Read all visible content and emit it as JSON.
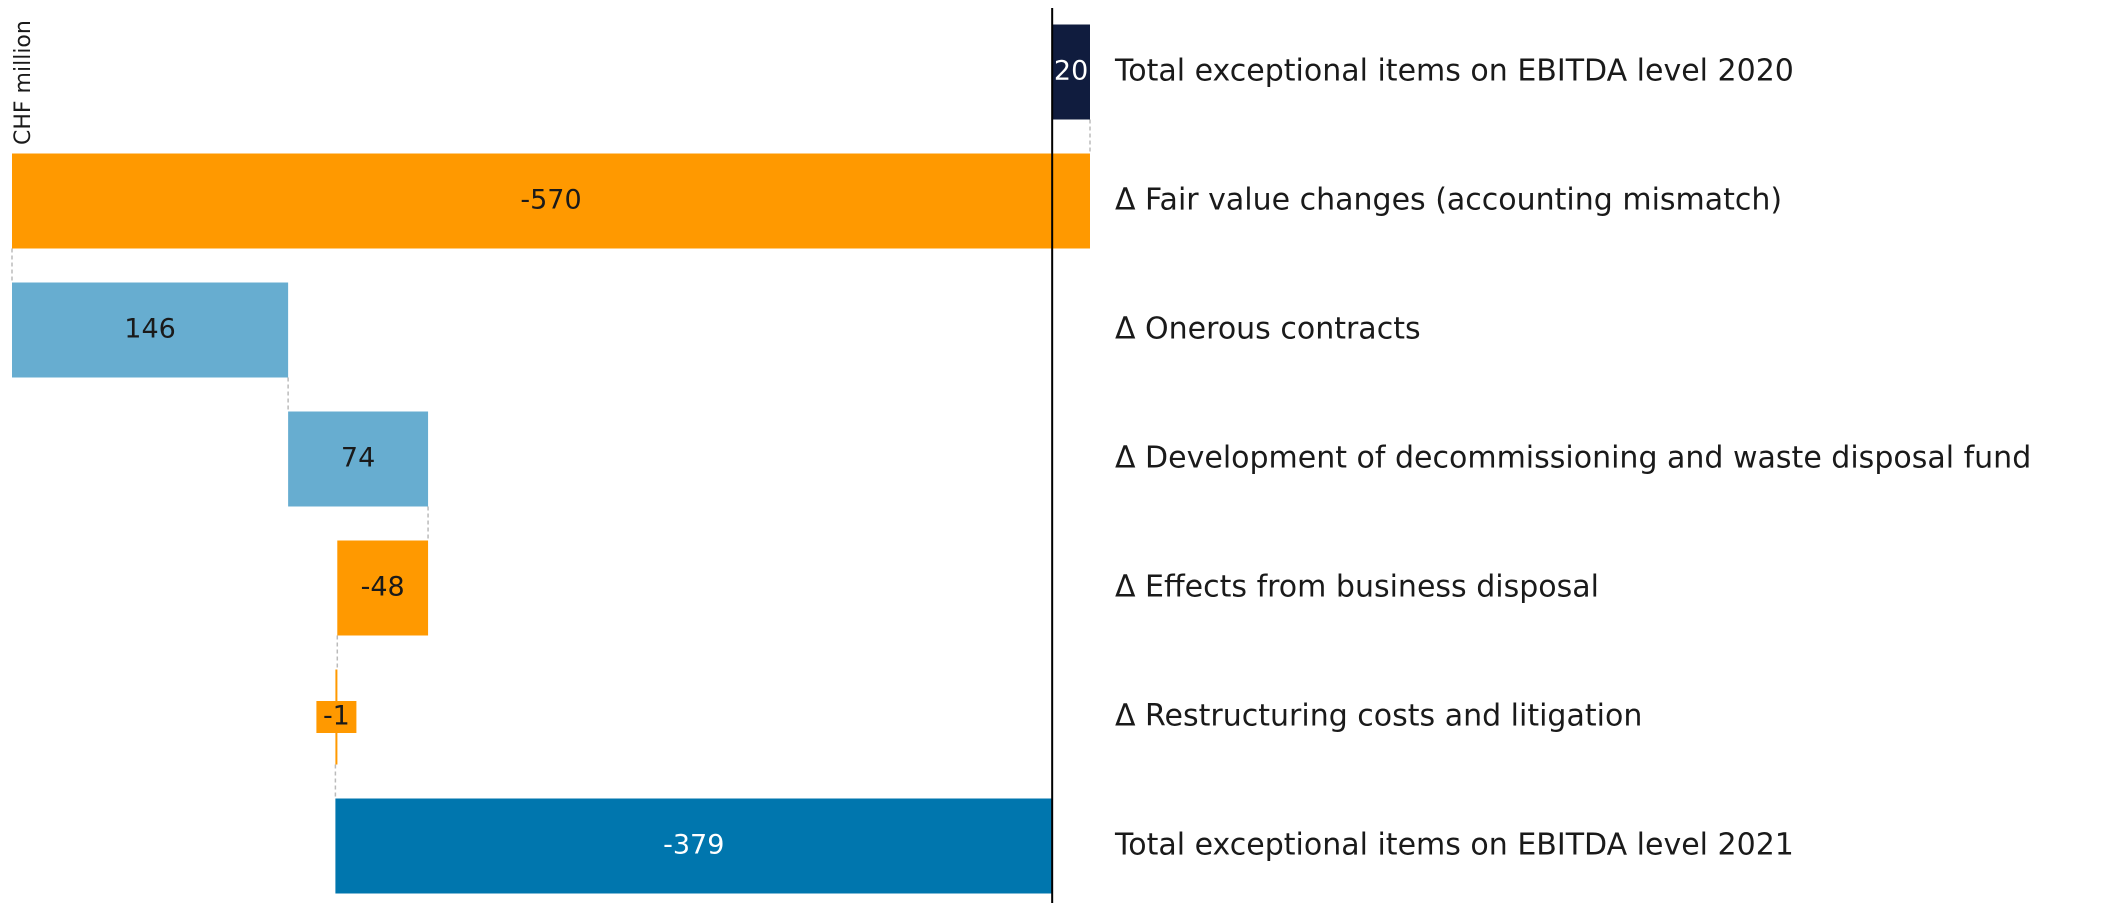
{
  "chart_data": {
    "type": "waterfall",
    "axis_label": "CHF million",
    "categories": [
      "Total exceptional items on EBITDA level 2020",
      "Δ Fair value changes (accounting mismatch)",
      "Δ Onerous contracts",
      "Δ Development of decommissioning and waste disposal fund",
      "Δ Effects from business disposal",
      "Δ Restructuring costs and litigation",
      "Total exceptional items on EBITDA level 2021"
    ],
    "values": [
      20,
      -570,
      146,
      74,
      -48,
      -1,
      -379
    ],
    "colors": [
      "#101c3e",
      "#ff9900",
      "#67add0",
      "#67add0",
      "#ff9900",
      "#ff9900",
      "#0076ae"
    ]
  }
}
